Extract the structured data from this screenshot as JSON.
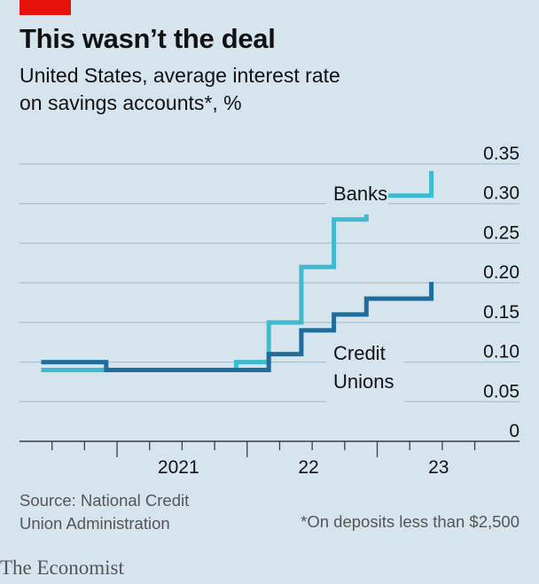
{
  "header": {
    "title": "This wasn’t the deal",
    "subtitle_line1": "United States, average interest rate",
    "subtitle_line2": "on savings accounts*, %"
  },
  "colors": {
    "banks": "#3ebbd1",
    "credit_unions": "#1e6d9c",
    "grid": "#a9bfcd",
    "background": "#d6e4ed",
    "brand_red": "#e3120b"
  },
  "chart_data": {
    "type": "line",
    "step": true,
    "x_tick_labels": [
      "2021",
      "22",
      "23"
    ],
    "y_ticks": [
      "0.35",
      "0.30",
      "0.25",
      "0.20",
      "0.15",
      "0.10",
      "0.05",
      "0"
    ],
    "ylim": [
      0,
      0.35
    ],
    "xlim": [
      "2020-04",
      "2023-12"
    ],
    "grid": true,
    "series": [
      {
        "name": "Banks",
        "label_lines": [
          "Banks"
        ],
        "points": [
          [
            "2020-06",
            0.09
          ],
          [
            "2020-09",
            0.09
          ],
          [
            "2020-12",
            0.09
          ],
          [
            "2021-03",
            0.09
          ],
          [
            "2021-06",
            0.09
          ],
          [
            "2021-09",
            0.09
          ],
          [
            "2021-12",
            0.1
          ],
          [
            "2022-03",
            0.15
          ],
          [
            "2022-06",
            0.22
          ],
          [
            "2022-09",
            0.28
          ],
          [
            "2022-12",
            0.31
          ],
          [
            "2023-03",
            0.31
          ],
          [
            "2023-06",
            0.33
          ]
        ]
      },
      {
        "name": "Credit Unions",
        "label_lines": [
          "Credit",
          "Unions"
        ],
        "points": [
          [
            "2020-06",
            0.1
          ],
          [
            "2020-09",
            0.1
          ],
          [
            "2020-12",
            0.09
          ],
          [
            "2021-03",
            0.09
          ],
          [
            "2021-06",
            0.09
          ],
          [
            "2021-09",
            0.09
          ],
          [
            "2021-12",
            0.09
          ],
          [
            "2022-03",
            0.11
          ],
          [
            "2022-06",
            0.14
          ],
          [
            "2022-09",
            0.16
          ],
          [
            "2022-12",
            0.18
          ],
          [
            "2023-03",
            0.18
          ],
          [
            "2023-06",
            0.19
          ]
        ]
      }
    ]
  },
  "footer": {
    "source_line1": "Source: National Credit",
    "source_line2": "Union Administration",
    "footnote": "*On deposits less than $2,500",
    "logo": "The Economist"
  }
}
